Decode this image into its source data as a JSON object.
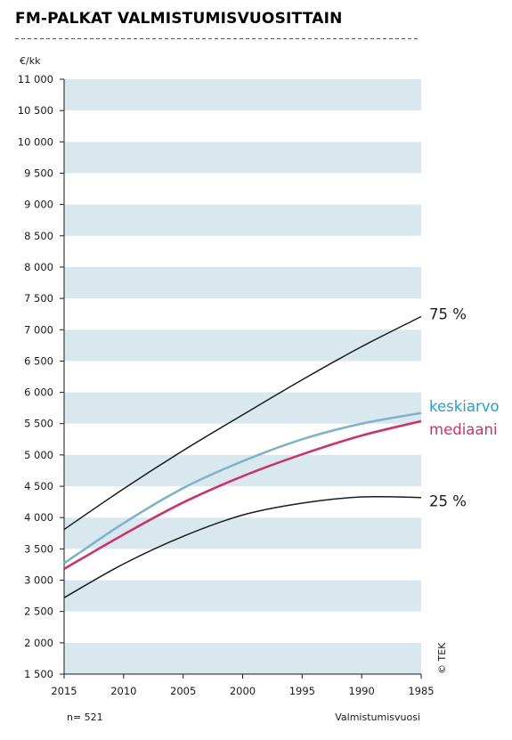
{
  "chart_data": {
    "type": "line",
    "title": "FM-PALKAT VALMISTUMISVUOSITTAIN",
    "ylabel": "€/kk",
    "xlabel": "Valmistumisvuosi",
    "note": "n= 521",
    "copyright": "© TEK",
    "ylim": [
      1500,
      11000
    ],
    "yticks": [
      1500,
      2000,
      2500,
      3000,
      3500,
      4000,
      4500,
      5000,
      5500,
      6000,
      6500,
      7000,
      7500,
      8000,
      8500,
      9000,
      9500,
      10000,
      10500,
      11000
    ],
    "ytick_labels": [
      "1 500",
      "2 000",
      "2 500",
      "3 000",
      "3 500",
      "4 000",
      "4 500",
      "5 000",
      "5 500",
      "6 000",
      "6 500",
      "7 000",
      "7 500",
      "8 000",
      "8 500",
      "9 000",
      "9 500",
      "10 000",
      "10 500",
      "11 000"
    ],
    "xlim": [
      2015,
      1985
    ],
    "xticks": [
      2015,
      2010,
      2005,
      2000,
      1995,
      1990,
      1985
    ],
    "grid": "alternating horizontal bands",
    "series": [
      {
        "name": "75 %",
        "color": "#1a1a1a",
        "x": [
          2015,
          2010,
          2005,
          2000,
          1995,
          1990,
          1985
        ],
        "y": [
          3810,
          4460,
          5070,
          5640,
          6200,
          6730,
          7210
        ]
      },
      {
        "name": "keskiarvo",
        "color": "#7fb3c9",
        "x": [
          2015,
          2010,
          2005,
          2000,
          1995,
          1990,
          1985
        ],
        "y": [
          3270,
          3910,
          4470,
          4900,
          5250,
          5500,
          5670
        ]
      },
      {
        "name": "mediaani",
        "color": "#c8356d",
        "x": [
          2015,
          2010,
          2005,
          2000,
          1995,
          1990,
          1985
        ],
        "y": [
          3180,
          3730,
          4240,
          4660,
          5010,
          5310,
          5540
        ]
      },
      {
        "name": "25 %",
        "color": "#1a1a1a",
        "x": [
          2015,
          2010,
          2005,
          2000,
          1995,
          1990,
          1985
        ],
        "y": [
          2720,
          3260,
          3700,
          4040,
          4230,
          4330,
          4320
        ]
      }
    ],
    "label_colors": {
      "keskiarvo": "#2a9fc4",
      "mediaani": "#c8356d"
    },
    "band_color": "#d9e8ee"
  }
}
